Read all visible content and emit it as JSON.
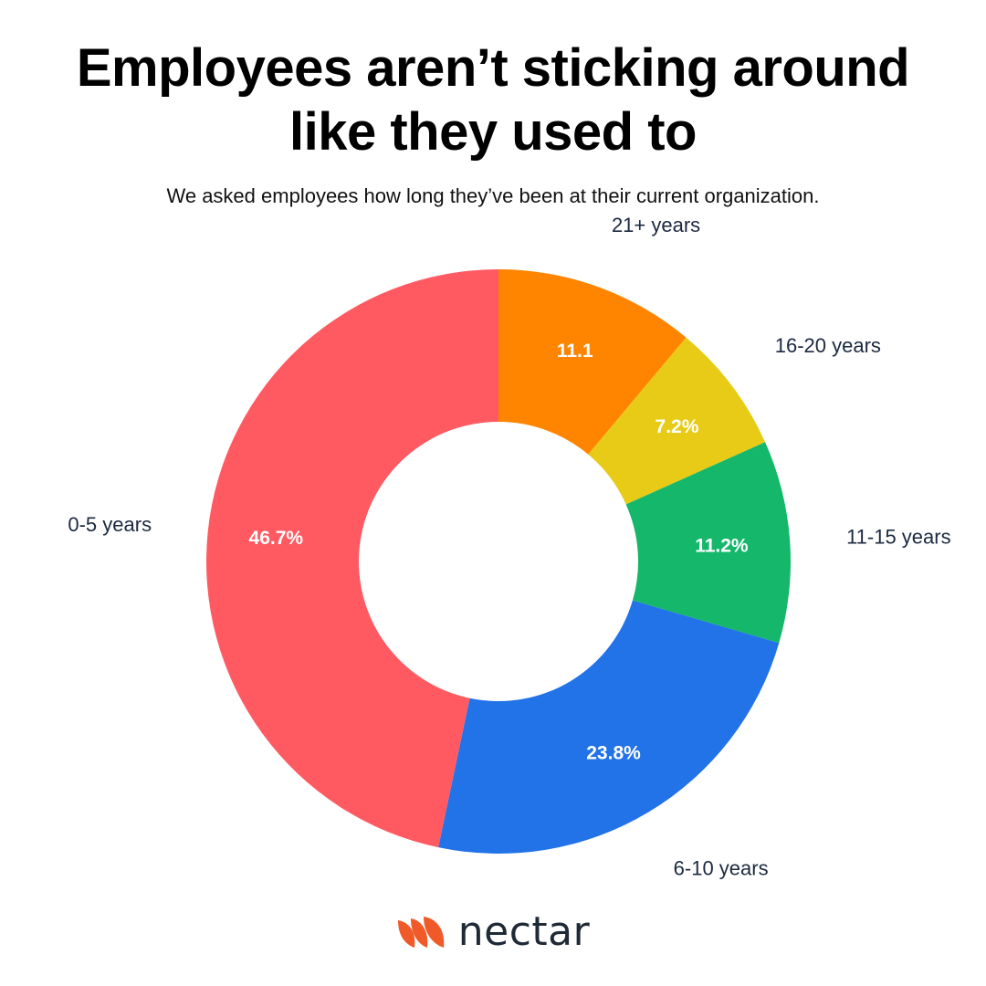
{
  "title_lines": [
    "Employees aren’t sticking around",
    "like they used to"
  ],
  "subtitle": "We asked employees how long they’ve been at their current organization.",
  "chart_data": {
    "type": "pie",
    "donut": true,
    "start": "12 o'clock, clockwise",
    "slices": [
      {
        "category": "21+ years",
        "value": 11.1,
        "value_label": "11.1",
        "color": "#FF8500"
      },
      {
        "category": "16-20 years",
        "value": 7.2,
        "value_label": "7.2%",
        "color": "#E8CB16"
      },
      {
        "category": "11-15 years",
        "value": 11.2,
        "value_label": "11.2%",
        "color": "#15B76A"
      },
      {
        "category": "6-10 years",
        "value": 23.8,
        "value_label": "23.8%",
        "color": "#2272E8"
      },
      {
        "category": "0-5 years",
        "value": 46.7,
        "value_label": "46.7%",
        "color": "#FF5A62"
      }
    ],
    "legend": "none (category labels outside slices)"
  },
  "logo": {
    "word": "nectar",
    "color": "#F05A28"
  }
}
